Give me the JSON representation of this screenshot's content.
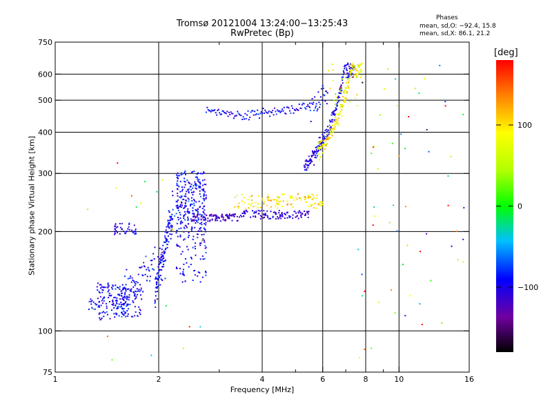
{
  "chart_data": {
    "type": "scatter",
    "title": "Tromsø 20121004 13:24:00−13:25:43",
    "subtitle": "RwPretec (Bp)",
    "xlabel": "Frequency [MHz]",
    "ylabel": "Stationary phase Virtual Height [km]",
    "x_scale": "log",
    "y_scale": "log",
    "xlim": [
      1,
      16
    ],
    "ylim": [
      75,
      750
    ],
    "x_ticks": [
      1,
      2,
      4,
      6,
      8,
      10,
      16
    ],
    "x_tick_labels": [
      "1",
      "2",
      "4",
      "6",
      "8",
      "10",
      "16"
    ],
    "x_minor_ticks": [
      3,
      5,
      7,
      9
    ],
    "y_ticks": [
      75,
      100,
      200,
      300,
      400,
      500,
      600,
      750
    ],
    "y_tick_labels": [
      "75",
      "100",
      "200",
      "300",
      "400",
      "500",
      "600",
      "750"
    ],
    "grid": true,
    "grid_x": [
      2,
      4,
      6,
      8,
      10
    ],
    "grid_y": [
      100,
      200,
      300,
      400,
      500,
      600
    ],
    "stats_header": "Phases",
    "stats_o": "mean, sd,O:  −92.4, 15.8",
    "stats_x": "mean, sd,X:  86.1, 21.2",
    "colorbar": {
      "label": "[deg]",
      "min": -180,
      "max": 180,
      "ticks": [
        100,
        0,
        -100
      ],
      "tick_labels": [
        "100",
        "0",
        "−100"
      ]
    },
    "series": [
      {
        "fmin": 1.25,
        "fmax": 1.32,
        "hmin": 115,
        "hmax": 125,
        "n": 12,
        "phase": -95,
        "sd": 15,
        "shape": "lin"
      },
      {
        "fmin": 1.32,
        "fmax": 1.45,
        "hmin": 108,
        "hmax": 140,
        "n": 60,
        "phase": -95,
        "sd": 15,
        "shape": "lin"
      },
      {
        "fmin": 1.45,
        "fmax": 1.62,
        "hmin": 110,
        "hmax": 138,
        "n": 70,
        "phase": -95,
        "sd": 15,
        "shape": "lin"
      },
      {
        "fmin": 1.55,
        "fmax": 1.8,
        "hmin": 110,
        "hmax": 135,
        "n": 60,
        "phase": -98,
        "sd": 15,
        "shape": "lin"
      },
      {
        "fmin": 1.5,
        "fmax": 1.95,
        "hmin": 125,
        "hmax": 160,
        "n": 70,
        "phase": -95,
        "sd": 15,
        "shape": "ramp",
        "h0": 125,
        "h1": 160
      },
      {
        "fmin": 1.48,
        "fmax": 1.72,
        "hmin": 196,
        "hmax": 212,
        "n": 40,
        "phase": -100,
        "sd": 12,
        "shape": "lin"
      },
      {
        "fmin": 1.95,
        "fmax": 2.2,
        "hmin": 135,
        "hmax": 240,
        "n": 140,
        "phase": -95,
        "sd": 14,
        "shape": "ramp",
        "h0": 130,
        "h1": 235
      },
      {
        "fmin": 2.25,
        "fmax": 2.75,
        "hmin": 200,
        "hmax": 305,
        "n": 260,
        "phase": -95,
        "sd": 15,
        "shape": "lin"
      },
      {
        "fmin": 2.25,
        "fmax": 2.75,
        "hmin": 140,
        "hmax": 200,
        "n": 80,
        "phase": -95,
        "sd": 15,
        "shape": "lin"
      },
      {
        "fmin": 2.5,
        "fmax": 3.5,
        "hmin": 215,
        "hmax": 226,
        "n": 90,
        "phase": -115,
        "sd": 12,
        "shape": "lin"
      },
      {
        "fmin": 3.5,
        "fmax": 5.5,
        "hmin": 218,
        "hmax": 232,
        "n": 110,
        "phase": -110,
        "sd": 12,
        "shape": "lin"
      },
      {
        "fmin": 5.3,
        "fmax": 7.4,
        "hmin": 225,
        "hmax": 650,
        "n": 200,
        "phase": -100,
        "sd": 15,
        "shape": "curve",
        "h0": 220,
        "fc": 7.4
      },
      {
        "fmin": 3.3,
        "fmax": 6.0,
        "hmin": 235,
        "hmax": 260,
        "n": 120,
        "phase": 100,
        "sd": 20,
        "shape": "lin"
      },
      {
        "fmin": 5.8,
        "fmax": 7.8,
        "hmin": 240,
        "hmax": 650,
        "n": 160,
        "phase": 90,
        "sd": 22,
        "shape": "curve",
        "h0": 235,
        "fc": 7.85
      },
      {
        "fmin": 2.75,
        "fmax": 5.5,
        "hmin": 440,
        "hmax": 485,
        "n": 110,
        "phase": -95,
        "sd": 15,
        "shape": "band",
        "h0": 470,
        "hmid": 448,
        "h1": 480
      },
      {
        "fmin": 5.5,
        "fmax": 6.2,
        "hmin": 470,
        "hmax": 540,
        "n": 30,
        "phase": -90,
        "sd": 15,
        "shape": "ramp",
        "h0": 470,
        "h1": 535
      },
      {
        "fmin": 6.2,
        "fmax": 7.6,
        "hmin": 480,
        "hmax": 650,
        "n": 30,
        "phase": 70,
        "sd": 35,
        "shape": "lin"
      },
      {
        "fmin": 7.6,
        "fmax": 15.5,
        "hmin": 80,
        "hmax": 650,
        "n": 60,
        "phase": 40,
        "sd": 110,
        "shape": "lin"
      },
      {
        "fmin": 1.2,
        "fmax": 2.9,
        "hmin": 78,
        "hmax": 400,
        "n": 25,
        "phase": 20,
        "sd": 90,
        "shape": "lin"
      }
    ]
  }
}
